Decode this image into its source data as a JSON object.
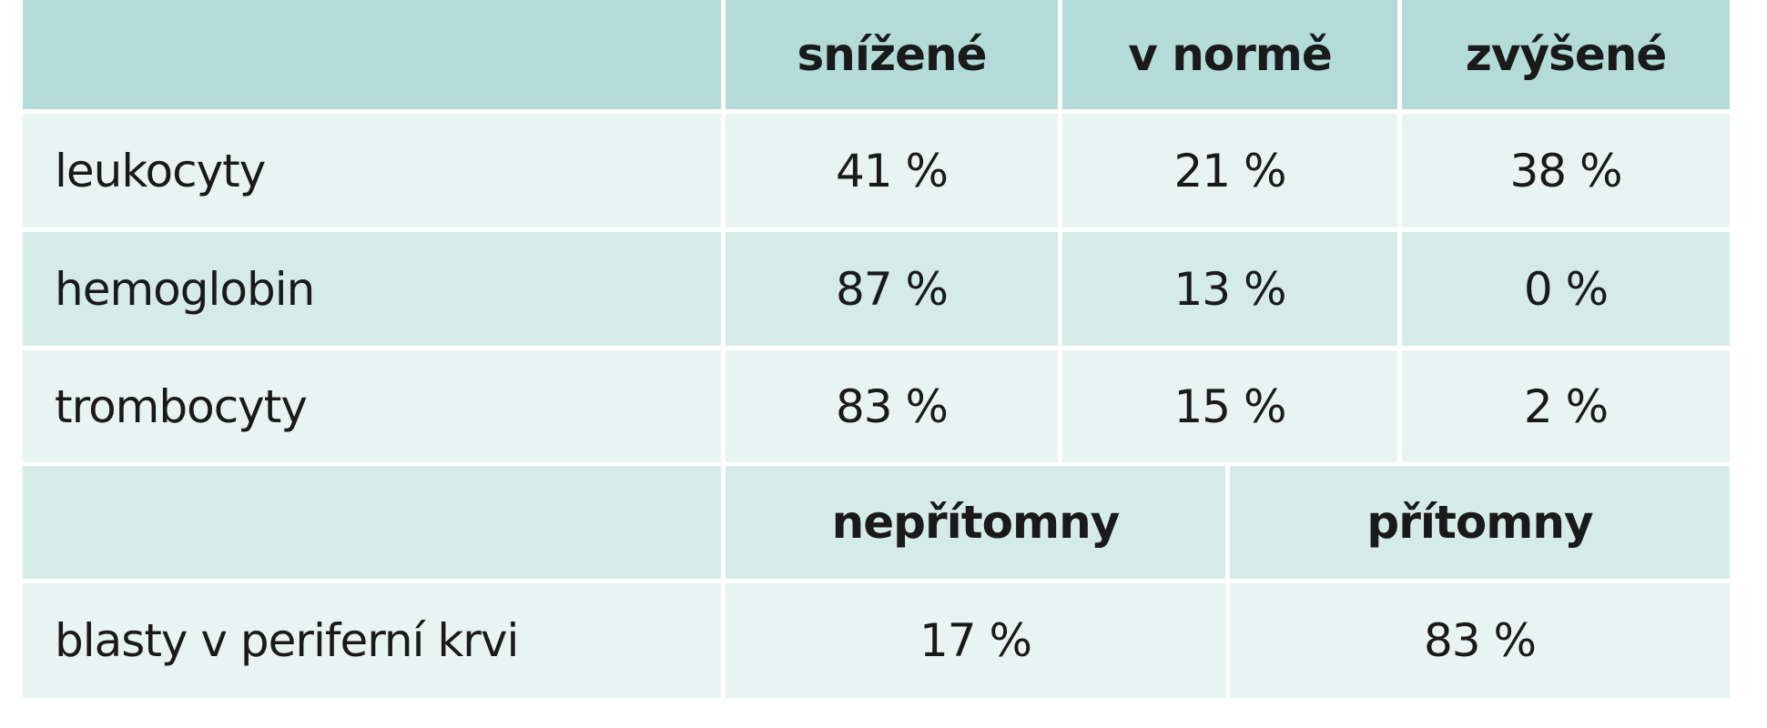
{
  "table": {
    "header": [
      "snížené",
      "v normě",
      "zvýšené"
    ],
    "rows": [
      [
        "leukocyty",
        "41 %",
        "21 %",
        "38 %"
      ],
      [
        "hemoglobin",
        "87 %",
        "13 %",
        "0 %"
      ],
      [
        "trombocyty",
        "83 %",
        "15 %",
        "2 %"
      ]
    ]
  },
  "blast_table": {
    "header": [
      "nepřítomny",
      "přítomny"
    ],
    "rows": [
      [
        "blasty v periferní krvi",
        "17 %",
        "83 %"
      ]
    ]
  }
}
